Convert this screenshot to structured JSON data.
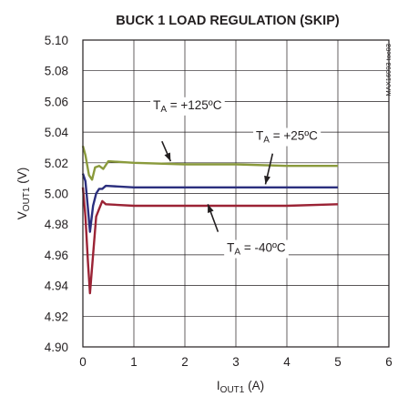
{
  "chart_data": {
    "type": "line",
    "title": "BUCK 1 LOAD REGULATION (SKIP)",
    "watermark": "MAX16993 toc03",
    "xlabel": {
      "main": "I",
      "sub": "OUT1",
      "unit": " (A)"
    },
    "ylabel": {
      "main": "V",
      "sub": "OUT1",
      "unit": " (V)"
    },
    "xlim": [
      0,
      6
    ],
    "ylim": [
      4.9,
      5.1
    ],
    "xticks": [
      "0",
      "1",
      "2",
      "3",
      "4",
      "5",
      "6"
    ],
    "yticks": [
      "5.10",
      "5.08",
      "5.06",
      "5.04",
      "5.02",
      "5.00",
      "4.98",
      "4.96",
      "4.94",
      "4.92",
      "4.90"
    ],
    "grid": true,
    "series": [
      {
        "name": "T_A = +125ºC",
        "label_main": "T",
        "label_sub": "A",
        "label_rest": " = +125ºC",
        "color": "#8a9a3c",
        "points": [
          [
            0,
            5.031
          ],
          [
            0.05,
            5.025
          ],
          [
            0.12,
            5.012
          ],
          [
            0.18,
            5.009
          ],
          [
            0.24,
            5.017
          ],
          [
            0.32,
            5.018
          ],
          [
            0.4,
            5.016
          ],
          [
            0.5,
            5.021
          ],
          [
            1,
            5.02
          ],
          [
            2,
            5.019
          ],
          [
            3,
            5.019
          ],
          [
            4,
            5.018
          ],
          [
            5,
            5.018
          ]
        ]
      },
      {
        "name": "T_A = +25ºC",
        "label_main": "T",
        "label_sub": "A",
        "label_rest": " = +25ºC",
        "color": "#2b2f7e",
        "points": [
          [
            0,
            5.013
          ],
          [
            0.05,
            5.008
          ],
          [
            0.1,
            4.99
          ],
          [
            0.14,
            4.975
          ],
          [
            0.2,
            4.992
          ],
          [
            0.26,
            5.0
          ],
          [
            0.32,
            5.003
          ],
          [
            0.38,
            5.003
          ],
          [
            0.45,
            5.005
          ],
          [
            1,
            5.004
          ],
          [
            2,
            5.004
          ],
          [
            3,
            5.004
          ],
          [
            4,
            5.004
          ],
          [
            5,
            5.004
          ]
        ]
      },
      {
        "name": "T_A = -40ºC",
        "label_main": "T",
        "label_sub": "A",
        "label_rest": " = -40ºC",
        "color": "#9b2335",
        "points": [
          [
            0,
            5.004
          ],
          [
            0.05,
            4.985
          ],
          [
            0.1,
            4.955
          ],
          [
            0.14,
            4.935
          ],
          [
            0.2,
            4.96
          ],
          [
            0.26,
            4.985
          ],
          [
            0.32,
            4.99
          ],
          [
            0.38,
            4.995
          ],
          [
            0.45,
            4.993
          ],
          [
            1,
            4.992
          ],
          [
            2,
            4.992
          ],
          [
            3,
            4.992
          ],
          [
            4,
            4.992
          ],
          [
            5,
            4.993
          ]
        ]
      }
    ],
    "annotations": [
      {
        "series": 0,
        "text_x": 2.05,
        "text_y": 5.055,
        "arrow_from": [
          1.55,
          5.034
        ],
        "arrow_to": [
          1.72,
          5.021
        ]
      },
      {
        "series": 1,
        "text_x": 4.0,
        "text_y": 5.035,
        "arrow_from": [
          3.72,
          5.026
        ],
        "arrow_to": [
          3.58,
          5.006
        ]
      },
      {
        "series": 2,
        "text_x": 3.4,
        "text_y": 4.962,
        "arrow_from": [
          2.65,
          4.975
        ],
        "arrow_to": [
          2.45,
          4.993
        ]
      }
    ]
  }
}
